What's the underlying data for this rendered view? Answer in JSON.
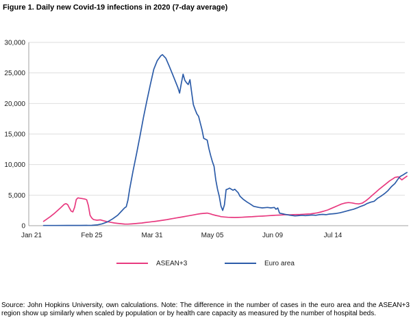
{
  "title": "Figure 1. Daily new Covid-19 infections in 2020 (7-day average)",
  "source_note": "Source: John Hopkins University, own calculations. Note: The difference in the number of cases in the euro area and the ASEAN+3 region show up similarly when scaled by population or by health care capacity as measured by the number of hospital beds.",
  "chart_data": {
    "type": "line",
    "title": "Figure 1. Daily new Covid-19 infections in 2020 (7-day average)",
    "grid": true,
    "legend_position": "bottom",
    "x_axis": {
      "unit": "date (2020), days since Jan 21",
      "tick_labels": [
        "Jan 21",
        "Feb 25",
        "Mar 31",
        "May 05",
        "Jun 09",
        "Jul 14"
      ],
      "tick_days": [
        0,
        35,
        70,
        105,
        140,
        175
      ],
      "max_day": 218
    },
    "y_axis": {
      "min": 0,
      "max": 30000,
      "tick_values": [
        0,
        5000,
        10000,
        15000,
        20000,
        25000,
        30000
      ],
      "tick_labels": [
        "0",
        "5,000",
        "10,000",
        "15,000",
        "20,000",
        "25,000",
        "30,000"
      ]
    },
    "colors": {
      "grid": "#dedede",
      "axis": "#a0a0a0",
      "text": "#1a1a1a"
    },
    "series": [
      {
        "name": "ASEAN+3",
        "color": "#e8397f",
        "points": [
          [
            7,
            700
          ],
          [
            9,
            1100
          ],
          [
            11,
            1500
          ],
          [
            13,
            1950
          ],
          [
            15,
            2450
          ],
          [
            17,
            2950
          ],
          [
            19,
            3500
          ],
          [
            20,
            3600
          ],
          [
            21,
            3450
          ],
          [
            22,
            2900
          ],
          [
            23,
            2400
          ],
          [
            24,
            2250
          ],
          [
            25,
            3000
          ],
          [
            26,
            4300
          ],
          [
            27,
            4560
          ],
          [
            28,
            4500
          ],
          [
            29,
            4450
          ],
          [
            31,
            4350
          ],
          [
            32,
            4250
          ],
          [
            33,
            3300
          ],
          [
            34,
            1700
          ],
          [
            35,
            1250
          ],
          [
            36,
            1000
          ],
          [
            38,
            900
          ],
          [
            40,
            950
          ],
          [
            42,
            800
          ],
          [
            44,
            650
          ],
          [
            46,
            550
          ],
          [
            48,
            450
          ],
          [
            50,
            380
          ],
          [
            52,
            320
          ],
          [
            54,
            270
          ],
          [
            56,
            260
          ],
          [
            58,
            290
          ],
          [
            60,
            340
          ],
          [
            62,
            390
          ],
          [
            64,
            440
          ],
          [
            66,
            510
          ],
          [
            68,
            580
          ],
          [
            70,
            650
          ],
          [
            72,
            720
          ],
          [
            74,
            800
          ],
          [
            76,
            880
          ],
          [
            78,
            960
          ],
          [
            80,
            1060
          ],
          [
            82,
            1160
          ],
          [
            84,
            1260
          ],
          [
            86,
            1360
          ],
          [
            88,
            1460
          ],
          [
            90,
            1560
          ],
          [
            92,
            1660
          ],
          [
            94,
            1760
          ],
          [
            96,
            1870
          ],
          [
            98,
            1960
          ],
          [
            100,
            2020
          ],
          [
            102,
            2060
          ],
          [
            104,
            1930
          ],
          [
            105,
            1830
          ],
          [
            107,
            1680
          ],
          [
            109,
            1560
          ],
          [
            110,
            1480
          ],
          [
            112,
            1420
          ],
          [
            114,
            1380
          ],
          [
            116,
            1350
          ],
          [
            118,
            1340
          ],
          [
            120,
            1360
          ],
          [
            122,
            1380
          ],
          [
            124,
            1410
          ],
          [
            126,
            1440
          ],
          [
            128,
            1470
          ],
          [
            130,
            1510
          ],
          [
            132,
            1540
          ],
          [
            134,
            1570
          ],
          [
            136,
            1600
          ],
          [
            138,
            1640
          ],
          [
            140,
            1680
          ],
          [
            142,
            1710
          ],
          [
            144,
            1740
          ],
          [
            146,
            1770
          ],
          [
            148,
            1800
          ],
          [
            150,
            1780
          ],
          [
            152,
            1800
          ],
          [
            154,
            1820
          ],
          [
            156,
            1840
          ],
          [
            158,
            1870
          ],
          [
            160,
            1900
          ],
          [
            162,
            1940
          ],
          [
            164,
            2010
          ],
          [
            166,
            2110
          ],
          [
            168,
            2240
          ],
          [
            170,
            2400
          ],
          [
            172,
            2580
          ],
          [
            174,
            2820
          ],
          [
            176,
            3060
          ],
          [
            178,
            3300
          ],
          [
            180,
            3550
          ],
          [
            182,
            3700
          ],
          [
            184,
            3780
          ],
          [
            186,
            3730
          ],
          [
            188,
            3620
          ],
          [
            190,
            3560
          ],
          [
            192,
            3680
          ],
          [
            194,
            4050
          ],
          [
            196,
            4500
          ],
          [
            198,
            5000
          ],
          [
            200,
            5500
          ],
          [
            202,
            6000
          ],
          [
            204,
            6450
          ],
          [
            206,
            6900
          ],
          [
            208,
            7350
          ],
          [
            210,
            7700
          ],
          [
            211,
            7900
          ],
          [
            213,
            8000
          ],
          [
            214,
            7750
          ],
          [
            215,
            7500
          ],
          [
            216,
            7700
          ],
          [
            218,
            8100
          ]
        ]
      },
      {
        "name": "Euro area",
        "color": "#2b5ba8",
        "points": [
          [
            7,
            30
          ],
          [
            14,
            30
          ],
          [
            21,
            40
          ],
          [
            28,
            40
          ],
          [
            35,
            60
          ],
          [
            38,
            120
          ],
          [
            41,
            300
          ],
          [
            44,
            600
          ],
          [
            47,
            1100
          ],
          [
            50,
            1700
          ],
          [
            52,
            2300
          ],
          [
            54,
            2900
          ],
          [
            55,
            3100
          ],
          [
            56,
            4200
          ],
          [
            57,
            6000
          ],
          [
            59,
            9000
          ],
          [
            61,
            11800
          ],
          [
            63,
            14700
          ],
          [
            65,
            17700
          ],
          [
            67,
            20500
          ],
          [
            69,
            23100
          ],
          [
            71,
            25600
          ],
          [
            73,
            27000
          ],
          [
            75,
            27800
          ],
          [
            76,
            28000
          ],
          [
            78,
            27400
          ],
          [
            80,
            26100
          ],
          [
            82,
            24700
          ],
          [
            83,
            24000
          ],
          [
            85,
            22600
          ],
          [
            86,
            21700
          ],
          [
            87,
            23300
          ],
          [
            88,
            24800
          ],
          [
            89,
            23800
          ],
          [
            90,
            23400
          ],
          [
            91,
            23100
          ],
          [
            92,
            23900
          ],
          [
            93,
            21800
          ],
          [
            94,
            19800
          ],
          [
            95,
            19000
          ],
          [
            96,
            18300
          ],
          [
            97,
            17900
          ],
          [
            98,
            16800
          ],
          [
            99,
            15700
          ],
          [
            100,
            14300
          ],
          [
            102,
            14000
          ],
          [
            103,
            12600
          ],
          [
            104,
            11500
          ],
          [
            105,
            10500
          ],
          [
            106,
            9700
          ],
          [
            107,
            7500
          ],
          [
            108,
            6000
          ],
          [
            109,
            4800
          ],
          [
            110,
            3200
          ],
          [
            111,
            2500
          ],
          [
            112,
            3400
          ],
          [
            113,
            5900
          ],
          [
            114,
            6000
          ],
          [
            115,
            6150
          ],
          [
            117,
            5800
          ],
          [
            118,
            5970
          ],
          [
            120,
            5400
          ],
          [
            121,
            4850
          ],
          [
            123,
            4300
          ],
          [
            125,
            3900
          ],
          [
            127,
            3550
          ],
          [
            129,
            3170
          ],
          [
            132,
            2990
          ],
          [
            134,
            2910
          ],
          [
            137,
            2990
          ],
          [
            139,
            2910
          ],
          [
            141,
            2990
          ],
          [
            142,
            2690
          ],
          [
            143,
            2910
          ],
          [
            144,
            2050
          ],
          [
            146,
            1940
          ],
          [
            147,
            1870
          ],
          [
            150,
            1710
          ],
          [
            153,
            1600
          ],
          [
            155,
            1650
          ],
          [
            157,
            1700
          ],
          [
            159,
            1650
          ],
          [
            161,
            1700
          ],
          [
            163,
            1750
          ],
          [
            165,
            1700
          ],
          [
            167,
            1800
          ],
          [
            169,
            1850
          ],
          [
            171,
            1800
          ],
          [
            173,
            1900
          ],
          [
            175,
            1950
          ],
          [
            177,
            2000
          ],
          [
            179,
            2100
          ],
          [
            181,
            2250
          ],
          [
            183,
            2400
          ],
          [
            185,
            2550
          ],
          [
            187,
            2700
          ],
          [
            189,
            2900
          ],
          [
            191,
            3150
          ],
          [
            193,
            3350
          ],
          [
            195,
            3650
          ],
          [
            197,
            3850
          ],
          [
            199,
            4000
          ],
          [
            201,
            4500
          ],
          [
            203,
            4850
          ],
          [
            205,
            5250
          ],
          [
            207,
            5750
          ],
          [
            209,
            6400
          ],
          [
            211,
            6900
          ],
          [
            213,
            7700
          ],
          [
            214,
            8050
          ],
          [
            215,
            8200
          ],
          [
            216,
            8350
          ],
          [
            217,
            8550
          ],
          [
            218,
            8700
          ]
        ]
      }
    ]
  }
}
